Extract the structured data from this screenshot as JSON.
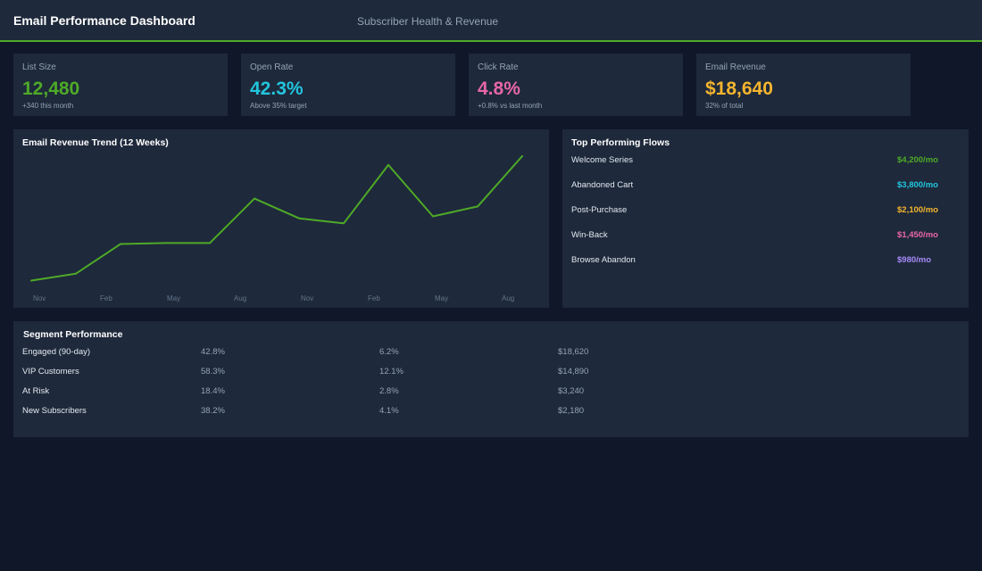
{
  "header": {
    "title": "Email Performance Dashboard",
    "subtitle": "Subscriber Health & Revenue"
  },
  "kpis": [
    {
      "label": "List Size",
      "value": "12,480",
      "sub": "+340 this month",
      "color": "#4eaa27"
    },
    {
      "label": "Open Rate",
      "value": "42.3%",
      "sub": "Above 35% target",
      "color": "#22c5dd"
    },
    {
      "label": "Click Rate",
      "value": "4.8%",
      "sub": "+0.8% vs last month",
      "color": "#e866a8"
    },
    {
      "label": "Email Revenue",
      "value": "$18,640",
      "sub": "32% of total",
      "color": "#f5b52e"
    }
  ],
  "trend": {
    "title": "Email Revenue Trend (12 Weeks)"
  },
  "chart_data": {
    "type": "line",
    "title": "Email Revenue Trend (12 Weeks)",
    "x_ticks": [
      "Nov",
      "Feb",
      "May",
      "Aug",
      "Nov",
      "Feb",
      "May",
      "Aug"
    ],
    "series": [
      {
        "values": [
          5,
          12,
          42,
          43,
          43,
          88,
          68,
          63,
          122,
          70,
          80,
          131
        ],
        "color": "#4eaa27"
      }
    ],
    "ylim": [
      0,
      140
    ],
    "grid": false,
    "legend": "none"
  },
  "flows": {
    "title": "Top Performing Flows",
    "items": [
      {
        "name": "Welcome Series",
        "value": "$4,200/mo",
        "color": "#4eaa27"
      },
      {
        "name": "Abandoned Cart",
        "value": "$3,800/mo",
        "color": "#22c5dd"
      },
      {
        "name": "Post-Purchase",
        "value": "$2,100/mo",
        "color": "#f5b52e"
      },
      {
        "name": "Win-Back",
        "value": "$1,450/mo",
        "color": "#e866a8"
      },
      {
        "name": "Browse Abandon",
        "value": "$980/mo",
        "color": "#a78bfa"
      }
    ]
  },
  "segments": {
    "title": "Segment Performance",
    "rows": [
      {
        "name": "Engaged (90-day)",
        "open": "42.8%",
        "click": "6.2%",
        "revenue": "$18,620"
      },
      {
        "name": "VIP Customers",
        "open": "58.3%",
        "click": "12.1%",
        "revenue": "$14,890"
      },
      {
        "name": "At Risk",
        "open": "18.4%",
        "click": "2.8%",
        "revenue": "$3,240"
      },
      {
        "name": "New Subscribers",
        "open": "38.2%",
        "click": "4.1%",
        "revenue": "$2,180"
      }
    ]
  }
}
